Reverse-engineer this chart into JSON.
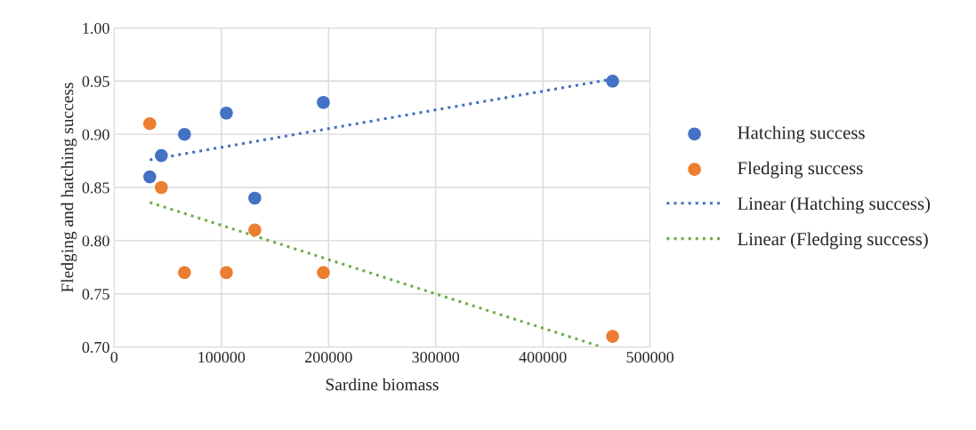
{
  "chart_data": {
    "type": "scatter",
    "xlabel": "Sardine biomass",
    "ylabel": "Fledging and hatching success",
    "xlim": [
      0,
      500000
    ],
    "xticks": [
      0,
      100000,
      200000,
      300000,
      400000,
      500000
    ],
    "ylim": [
      0.7,
      1.0
    ],
    "yticks": [
      {
        "value": 0.7,
        "label": "0.70"
      },
      {
        "value": 0.75,
        "label": "0.75"
      },
      {
        "value": 0.8,
        "label": "0.80"
      },
      {
        "value": 0.85,
        "label": "0.85"
      },
      {
        "value": 0.9,
        "label": "0.90"
      },
      {
        "value": 0.95,
        "label": "0.95"
      },
      {
        "value": 1.0,
        "label": "1.00"
      }
    ],
    "grid": true,
    "legend": "right",
    "series": [
      {
        "name": "Hatching success",
        "marker": "circle",
        "color": "#4472c4",
        "x": [
          33200,
          44000,
          65600,
          104700,
          131200,
          195200,
          465100
        ],
        "values": [
          0.86,
          0.88,
          0.9,
          0.92,
          0.84,
          0.93,
          0.95
        ]
      },
      {
        "name": "Fledging success",
        "marker": "circle",
        "color": "#ed7d31",
        "x": [
          33200,
          44000,
          65600,
          104700,
          131200,
          195200,
          465100
        ],
        "values": [
          0.91,
          0.85,
          0.77,
          0.77,
          0.81,
          0.77,
          0.71
        ]
      },
      {
        "name": "Linear (Hatching success)",
        "type": "line",
        "marker": "none",
        "line_style": "dotted",
        "color": "#4472c4",
        "x": [
          33200,
          465100
        ],
        "values": [
          0.876,
          0.952
        ]
      },
      {
        "name": "Linear (Fledging success)",
        "type": "line",
        "marker": "none",
        "line_style": "dotted",
        "color": "#70ad47",
        "x": [
          33200,
          455000
        ],
        "values": [
          0.836,
          0.7
        ]
      }
    ]
  }
}
